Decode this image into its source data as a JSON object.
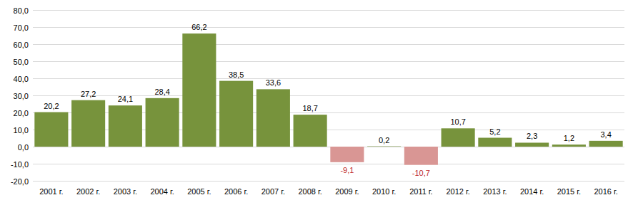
{
  "chart_data": {
    "type": "bar",
    "categories": [
      "2001 г.",
      "2002 г.",
      "2003 г.",
      "2004 г.",
      "2005 г.",
      "2006 г.",
      "2007 г.",
      "2008 г.",
      "2009 г.",
      "2010 г.",
      "2011 г.",
      "2012 г.",
      "2013 г.",
      "2014 г.",
      "2015 г.",
      "2016 г."
    ],
    "values": [
      20.2,
      27.2,
      24.1,
      28.4,
      66.2,
      38.5,
      33.6,
      18.7,
      -9.1,
      0.2,
      -10.7,
      10.7,
      5.2,
      2.3,
      1.2,
      3.4
    ],
    "value_labels": [
      "20,2",
      "27,2",
      "24,1",
      "28,4",
      "66,2",
      "38,5",
      "33,6",
      "18,7",
      "-9,1",
      "0,2",
      "-10,7",
      "10,7",
      "5,2",
      "2,3",
      "1,2",
      "3,4"
    ],
    "colors": [
      "#77933c",
      "#77933c",
      "#77933c",
      "#77933c",
      "#77933c",
      "#77933c",
      "#77933c",
      "#77933c",
      "#d99694",
      "#77933c",
      "#d99694",
      "#77933c",
      "#77933c",
      "#77933c",
      "#77933c",
      "#77933c"
    ],
    "ylim": [
      -20,
      80
    ],
    "yticks": [
      {
        "value": -20,
        "label": "-20,0"
      },
      {
        "value": -10,
        "label": "-10,0"
      },
      {
        "value": 0,
        "label": "0,0"
      },
      {
        "value": 10,
        "label": "10,0"
      },
      {
        "value": 20,
        "label": "20,0"
      },
      {
        "value": 30,
        "label": "30,0"
      },
      {
        "value": 40,
        "label": "40,0"
      },
      {
        "value": 50,
        "label": "50,0"
      },
      {
        "value": 60,
        "label": "60,0"
      },
      {
        "value": 70,
        "label": "70,0"
      },
      {
        "value": 80,
        "label": "80,0"
      }
    ],
    "grid": true,
    "data_labels": true
  }
}
